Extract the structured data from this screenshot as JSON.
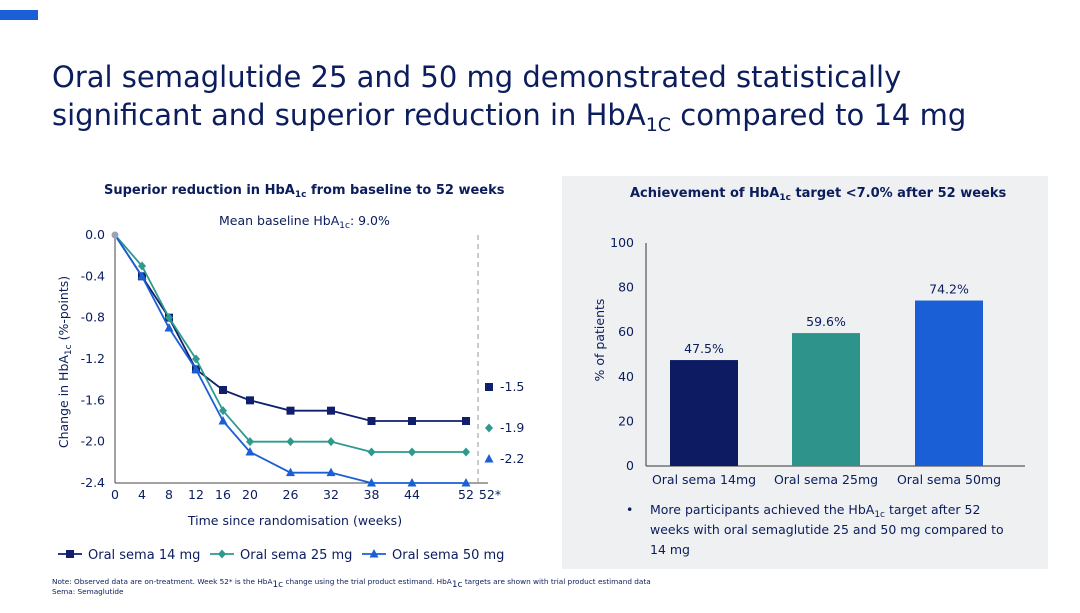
{
  "title": {
    "line1": "Oral semaglutide 25 and 50 mg demonstrated statistically",
    "line2_before": "significant and superior reduction in HbA",
    "line2_sub": "1C",
    "line2_after": " compared to 14 mg"
  },
  "line_chart": {
    "heading_before": "Superior reduction in HbA",
    "heading_sub": "1c",
    "heading_after": " from baseline to 52 weeks",
    "subheading_before": "Mean baseline HbA",
    "subheading_sub": "1c",
    "subheading_after": ": 9.0%",
    "ylabel_before": "Change in HbA",
    "ylabel_sub": "1c",
    "ylabel_after": " (%-points)",
    "xlabel": "Time since randomisation (weeks)"
  },
  "bar_chart": {
    "heading_before": "Achievement of HbA",
    "heading_sub": "1c",
    "heading_after": " target <7.0% after 52 weeks",
    "bullet_before": "More participants achieved the HbA",
    "bullet_sub": "1c",
    "bullet_after": " target after 52 weeks with oral semaglutide 25 and 50 mg compared to 14 mg"
  },
  "note": {
    "line1_a": "Note: Observed data are on-treatment. Week 52* is the HbA",
    "line1_sub1": "1c",
    "line1_b": " change using the trial product estimand. HbA",
    "line1_sub2": "1c",
    "line1_c": " targets are shown with trial product estimand data",
    "line2": "Sema: Semaglutide"
  },
  "chart_data": [
    {
      "type": "line",
      "x": [
        0,
        4,
        8,
        12,
        16,
        20,
        26,
        32,
        38,
        44,
        52
      ],
      "x_tick_labels": [
        "0",
        "4",
        "8",
        "12",
        "16",
        "20",
        "26",
        "32",
        "38",
        "44",
        "52",
        "52*"
      ],
      "ylim": [
        -2.4,
        0.0
      ],
      "y_ticks": [
        "0.0",
        "-0.4",
        "-0.8",
        "-1.2",
        "-1.6",
        "-2.0",
        "-2.4"
      ],
      "series": [
        {
          "name": "Oral sema 14 mg",
          "color": "#0f1f6b",
          "marker": "square",
          "values": [
            0.0,
            -0.4,
            -0.8,
            -1.3,
            -1.5,
            -1.6,
            -1.7,
            -1.7,
            -1.8,
            -1.8,
            -1.8
          ],
          "estimand_52": -1.5,
          "estimand_label": "-1.5"
        },
        {
          "name": "Oral sema 25 mg",
          "color": "#2e9a8e",
          "marker": "diamond",
          "values": [
            0.0,
            -0.3,
            -0.8,
            -1.2,
            -1.7,
            -2.0,
            -2.0,
            -2.0,
            -2.1,
            -2.1,
            -2.1
          ],
          "estimand_52": -1.9,
          "estimand_label": "-1.9"
        },
        {
          "name": "Oral sema 50 mg",
          "color": "#1a5fd6",
          "marker": "triangle",
          "values": [
            0.0,
            -0.4,
            -0.9,
            -1.3,
            -1.8,
            -2.1,
            -2.3,
            -2.3,
            -2.4,
            -2.4,
            -2.4
          ],
          "estimand_52": -2.2,
          "estimand_label": "-2.2"
        }
      ],
      "grid": false,
      "legend": "bottom"
    },
    {
      "type": "bar",
      "categories": [
        "Oral sema 14mg",
        "Oral sema 25mg",
        "Oral sema 50mg"
      ],
      "values": [
        47.5,
        59.6,
        74.2
      ],
      "data_labels": [
        "47.5%",
        "59.6%",
        "74.2%"
      ],
      "colors": [
        "#0d1b63",
        "#2e948b",
        "#1a5fd6"
      ],
      "ylabel": "% of patients",
      "ylim": [
        0,
        100
      ],
      "y_ticks": [
        "0",
        "20",
        "40",
        "60",
        "80",
        "100"
      ],
      "grid": false
    }
  ]
}
